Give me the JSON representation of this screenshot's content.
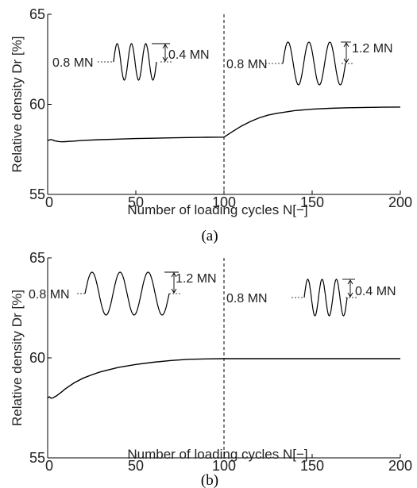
{
  "chart_data": [
    {
      "type": "line",
      "caption": "(a)",
      "xlabel": "Number of loading cycles N[−]",
      "ylabel": "Relative density Dr [%]",
      "xlim": [
        0,
        200
      ],
      "ylim": [
        55,
        65
      ],
      "xticks": [
        "0",
        "50",
        "100",
        "150",
        "200"
      ],
      "yticks": [
        "55",
        "60",
        "65"
      ],
      "divider_x": 100,
      "series": [
        {
          "x": [
            0,
            2,
            4,
            6,
            8,
            10,
            15,
            20,
            30,
            40,
            50,
            60,
            70,
            80,
            90,
            100,
            105,
            110,
            115,
            120,
            125,
            130,
            140,
            150,
            160,
            170,
            180,
            190,
            200
          ],
          "y": [
            58.0,
            58.05,
            57.98,
            57.94,
            57.92,
            57.93,
            57.96,
            58.0,
            58.04,
            58.07,
            58.1,
            58.12,
            58.14,
            58.16,
            58.17,
            58.18,
            58.5,
            58.8,
            59.05,
            59.25,
            59.4,
            59.5,
            59.65,
            59.73,
            59.78,
            59.81,
            59.83,
            59.84,
            59.85
          ]
        }
      ],
      "annotations": {
        "left_mean": "0.8 MN",
        "left_amp": "0.4 MN",
        "right_mean": "0.8 MN",
        "right_amp": "1.2 MN"
      }
    },
    {
      "type": "line",
      "caption": "(b)",
      "xlabel": "Number of loading cycles N[−]",
      "ylabel": "Relative density Dr [%]",
      "xlim": [
        0,
        200
      ],
      "ylim": [
        55,
        65
      ],
      "xticks": [
        "0",
        "50",
        "100",
        "150",
        "200"
      ],
      "yticks": [
        "55",
        "60",
        "65"
      ],
      "divider_x": 100,
      "series": [
        {
          "x": [
            0,
            1,
            2,
            3,
            5,
            8,
            10,
            15,
            20,
            25,
            30,
            40,
            50,
            60,
            70,
            80,
            90,
            100,
            120,
            140,
            160,
            180,
            200
          ],
          "y": [
            58.0,
            58.05,
            57.98,
            58.0,
            58.1,
            58.3,
            58.45,
            58.75,
            58.98,
            59.15,
            59.3,
            59.52,
            59.67,
            59.78,
            59.87,
            59.93,
            59.95,
            59.96,
            59.96,
            59.96,
            59.96,
            59.96,
            59.96
          ]
        }
      ],
      "annotations": {
        "left_mean": "0.8 MN",
        "left_amp": "1.2 MN",
        "right_mean": "0.8 MN",
        "right_amp": "0.4 MN"
      }
    }
  ]
}
